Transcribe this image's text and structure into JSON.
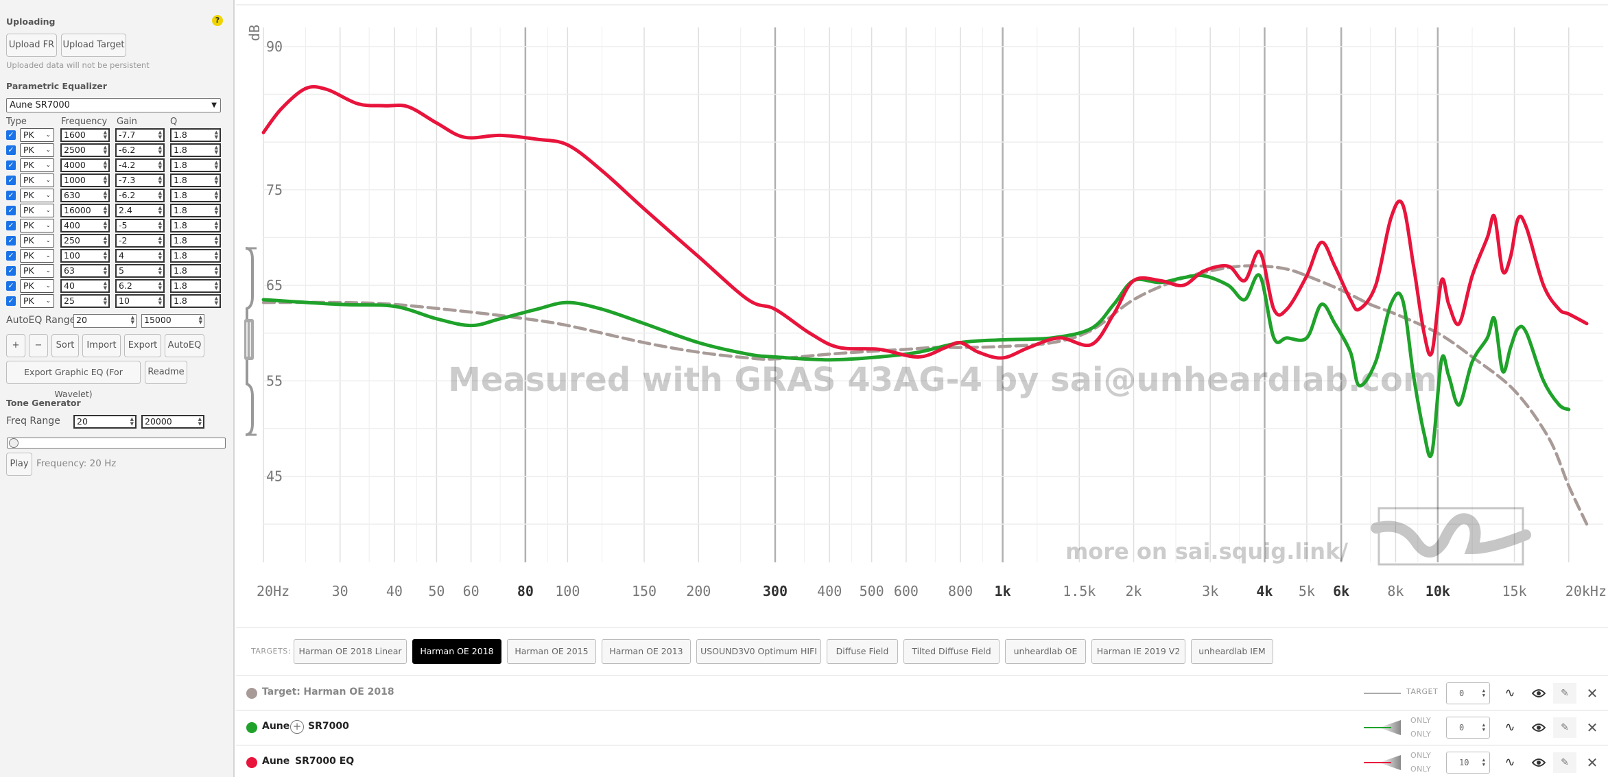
{
  "sidebar": {
    "uploading": {
      "title": "Uploading",
      "help": "?",
      "upload_fr": "Upload FR",
      "upload_target": "Upload Target",
      "note": "Uploaded data will not be persistent"
    },
    "peq": {
      "title": "Parametric Equalizer",
      "selected_phone": "Aune SR7000",
      "columns": {
        "type": "Type",
        "frequency": "Frequency",
        "gain": "Gain",
        "q": "Q"
      },
      "filters": [
        {
          "type": "PK",
          "freq": "1600",
          "gain": "-7.7",
          "q": "1.8"
        },
        {
          "type": "PK",
          "freq": "2500",
          "gain": "-6.2",
          "q": "1.8"
        },
        {
          "type": "PK",
          "freq": "4000",
          "gain": "-4.2",
          "q": "1.8"
        },
        {
          "type": "PK",
          "freq": "1000",
          "gain": "-7.3",
          "q": "1.8"
        },
        {
          "type": "PK",
          "freq": "630",
          "gain": "-6.2",
          "q": "1.8"
        },
        {
          "type": "PK",
          "freq": "16000",
          "gain": "2.4",
          "q": "1.8"
        },
        {
          "type": "PK",
          "freq": "400",
          "gain": "-5",
          "q": "1.8"
        },
        {
          "type": "PK",
          "freq": "250",
          "gain": "-2",
          "q": "1.8"
        },
        {
          "type": "PK",
          "freq": "100",
          "gain": "4",
          "q": "1.8"
        },
        {
          "type": "PK",
          "freq": "63",
          "gain": "5",
          "q": "1.8"
        },
        {
          "type": "PK",
          "freq": "40",
          "gain": "6.2",
          "q": "1.8"
        },
        {
          "type": "PK",
          "freq": "25",
          "gain": "10",
          "q": "1.8"
        }
      ],
      "autoeq_range_label": "AutoEQ Range",
      "autoeq_min": "20",
      "autoeq_max": "15000",
      "buttons": {
        "plus": "+",
        "minus": "−",
        "sort": "Sort",
        "import": "Import",
        "export": "Export",
        "autoeq": "AutoEQ"
      },
      "export_graphic": "Export Graphic EQ (For Wavelet)",
      "readme": "Readme"
    },
    "tone": {
      "title": "Tone Generator",
      "freq_range_label": "Freq Range",
      "min": "20",
      "max": "20000",
      "slider_fraction": 0,
      "play": "Play",
      "frequency_text": "Frequency: 20 Hz"
    }
  },
  "graph": {
    "y_unit": "dB",
    "watermark": "Measured with GRAS 43AG-4 by sai@unheardlab.com",
    "more": "more on sai.squig.link/",
    "y_ticks": [
      {
        "v": 90,
        "label": "90"
      },
      {
        "v": 75,
        "label": "75"
      },
      {
        "v": 65,
        "label": "65"
      },
      {
        "v": 55,
        "label": "55"
      },
      {
        "v": 45,
        "label": "45"
      }
    ],
    "x_ticks": [
      {
        "f": 20,
        "label": "20Hz",
        "major": false
      },
      {
        "f": 30,
        "label": "30",
        "major": false
      },
      {
        "f": 40,
        "label": "40",
        "major": false
      },
      {
        "f": 50,
        "label": "50",
        "major": false
      },
      {
        "f": 60,
        "label": "60",
        "major": false
      },
      {
        "f": 80,
        "label": "80",
        "major": true
      },
      {
        "f": 100,
        "label": "100",
        "major": false
      },
      {
        "f": 150,
        "label": "150",
        "major": false
      },
      {
        "f": 200,
        "label": "200",
        "major": false
      },
      {
        "f": 300,
        "label": "300",
        "major": true
      },
      {
        "f": 400,
        "label": "400",
        "major": false
      },
      {
        "f": 500,
        "label": "500",
        "major": false
      },
      {
        "f": 600,
        "label": "600",
        "major": false
      },
      {
        "f": 800,
        "label": "800",
        "major": false
      },
      {
        "f": 1000,
        "label": "1k",
        "major": true
      },
      {
        "f": 1500,
        "label": "1.5k",
        "major": false
      },
      {
        "f": 2000,
        "label": "2k",
        "major": false
      },
      {
        "f": 3000,
        "label": "3k",
        "major": false
      },
      {
        "f": 4000,
        "label": "4k",
        "major": true
      },
      {
        "f": 5000,
        "label": "5k",
        "major": false
      },
      {
        "f": 6000,
        "label": "6k",
        "major": true
      },
      {
        "f": 8000,
        "label": "8k",
        "major": false
      },
      {
        "f": 10000,
        "label": "10k",
        "major": true
      },
      {
        "f": 15000,
        "label": "15k",
        "major": false
      },
      {
        "f": 20000,
        "label": "20kHz",
        "major": false
      }
    ],
    "extra_grid": [
      25,
      35,
      45,
      70,
      90,
      120,
      250,
      350,
      450,
      700,
      900,
      1200,
      2500,
      3500,
      7000,
      9000,
      12000
    ],
    "colors": {
      "eq": "#e8143c",
      "raw": "#1fa22a",
      "target": "#a89b97"
    }
  },
  "chart_data": {
    "type": "line",
    "xscale": "log",
    "xlim": [
      20,
      24000
    ],
    "ylim": [
      36,
      92
    ],
    "ylabel": "dB",
    "series": [
      {
        "name": "Aune SR7000 EQ",
        "points": [
          [
            20,
            81
          ],
          [
            22,
            83.5
          ],
          [
            25,
            85.6
          ],
          [
            28,
            85.5
          ],
          [
            33,
            84
          ],
          [
            38,
            83.8
          ],
          [
            43,
            83.7
          ],
          [
            50,
            82
          ],
          [
            58,
            80.5
          ],
          [
            70,
            80.7
          ],
          [
            85,
            80.3
          ],
          [
            100,
            79.7
          ],
          [
            120,
            77
          ],
          [
            150,
            73
          ],
          [
            200,
            68
          ],
          [
            260,
            63.5
          ],
          [
            300,
            62.5
          ],
          [
            360,
            60
          ],
          [
            420,
            58.5
          ],
          [
            520,
            58.3
          ],
          [
            640,
            57.5
          ],
          [
            740,
            58.5
          ],
          [
            800,
            59
          ],
          [
            880,
            58
          ],
          [
            1000,
            57.4
          ],
          [
            1150,
            58.5
          ],
          [
            1350,
            59.5
          ],
          [
            1600,
            58.8
          ],
          [
            1800,
            62
          ],
          [
            2000,
            65.5
          ],
          [
            2300,
            65.5
          ],
          [
            2600,
            65
          ],
          [
            2900,
            66.5
          ],
          [
            3300,
            67
          ],
          [
            3600,
            65.5
          ],
          [
            3900,
            68.5
          ],
          [
            4200,
            62.5
          ],
          [
            4500,
            62.5
          ],
          [
            5000,
            66
          ],
          [
            5400,
            69.5
          ],
          [
            5800,
            67
          ],
          [
            6300,
            63.5
          ],
          [
            6600,
            62.5
          ],
          [
            7200,
            65
          ],
          [
            7800,
            72
          ],
          [
            8300,
            73.5
          ],
          [
            8800,
            67
          ],
          [
            9300,
            60
          ],
          [
            9700,
            58
          ],
          [
            10200,
            65.5
          ],
          [
            10600,
            63
          ],
          [
            11200,
            61
          ],
          [
            12000,
            66
          ],
          [
            13000,
            70
          ],
          [
            13500,
            72.2
          ],
          [
            14100,
            66.5
          ],
          [
            14700,
            68
          ],
          [
            15300,
            72
          ],
          [
            16000,
            71
          ],
          [
            17500,
            65
          ],
          [
            19000,
            62.5
          ],
          [
            20000,
            62
          ],
          [
            22000,
            61
          ]
        ]
      },
      {
        "name": "Aune SR7000",
        "points": [
          [
            20,
            63.5
          ],
          [
            30,
            63
          ],
          [
            40,
            62.8
          ],
          [
            50,
            61.5
          ],
          [
            60,
            60.8
          ],
          [
            70,
            61.5
          ],
          [
            85,
            62.5
          ],
          [
            100,
            63.2
          ],
          [
            120,
            62.5
          ],
          [
            150,
            61
          ],
          [
            200,
            59
          ],
          [
            260,
            57.8
          ],
          [
            300,
            57.5
          ],
          [
            400,
            57.2
          ],
          [
            520,
            57.5
          ],
          [
            640,
            58
          ],
          [
            800,
            59
          ],
          [
            1000,
            59.3
          ],
          [
            1300,
            59.5
          ],
          [
            1600,
            60.5
          ],
          [
            1800,
            63
          ],
          [
            2000,
            65.5
          ],
          [
            2300,
            65.3
          ],
          [
            2600,
            65.8
          ],
          [
            2900,
            66
          ],
          [
            3300,
            65
          ],
          [
            3600,
            63.5
          ],
          [
            3900,
            66
          ],
          [
            4200,
            59.5
          ],
          [
            4500,
            59.5
          ],
          [
            5000,
            59.5
          ],
          [
            5400,
            63
          ],
          [
            5800,
            61
          ],
          [
            6300,
            58
          ],
          [
            6600,
            54.5
          ],
          [
            7200,
            57
          ],
          [
            7800,
            63
          ],
          [
            8300,
            63.5
          ],
          [
            8800,
            55.5
          ],
          [
            9300,
            49.5
          ],
          [
            9700,
            47.5
          ],
          [
            10200,
            57.2
          ],
          [
            10600,
            55.5
          ],
          [
            11200,
            52.5
          ],
          [
            12000,
            57
          ],
          [
            13000,
            59.5
          ],
          [
            13500,
            61.5
          ],
          [
            14100,
            56
          ],
          [
            14700,
            58.5
          ],
          [
            15300,
            60.5
          ],
          [
            16000,
            60
          ],
          [
            17500,
            55
          ],
          [
            19000,
            52.5
          ],
          [
            20000,
            52
          ]
        ]
      },
      {
        "name": "Harman OE 2018",
        "dashed": true,
        "points": [
          [
            20,
            63.2
          ],
          [
            30,
            63.2
          ],
          [
            40,
            63
          ],
          [
            60,
            62.2
          ],
          [
            80,
            61.5
          ],
          [
            100,
            60.8
          ],
          [
            150,
            59
          ],
          [
            200,
            58
          ],
          [
            260,
            57.4
          ],
          [
            300,
            57.3
          ],
          [
            400,
            57.8
          ],
          [
            500,
            58.1
          ],
          [
            600,
            58.3
          ],
          [
            700,
            58.5
          ],
          [
            800,
            58.5
          ],
          [
            1000,
            58.6
          ],
          [
            1300,
            59
          ],
          [
            1600,
            60.3
          ],
          [
            2000,
            63.5
          ],
          [
            2500,
            65.5
          ],
          [
            3000,
            66.5
          ],
          [
            3500,
            67
          ],
          [
            4000,
            67
          ],
          [
            4500,
            66.7
          ],
          [
            5000,
            66
          ],
          [
            6000,
            64.5
          ],
          [
            7000,
            63
          ],
          [
            8000,
            62
          ],
          [
            10000,
            60
          ],
          [
            12000,
            57.5
          ],
          [
            15000,
            54
          ],
          [
            18000,
            49
          ],
          [
            20000,
            44
          ],
          [
            22000,
            40
          ]
        ]
      }
    ]
  },
  "targets": {
    "label": "TARGETS:",
    "items": [
      {
        "label": "Harman OE 2018 Linear",
        "active": false
      },
      {
        "label": "Harman OE 2018",
        "active": true
      },
      {
        "label": "Harman OE 2015",
        "active": false
      },
      {
        "label": "Harman OE 2013",
        "active": false
      },
      {
        "label": "USOUND3V0 Optimum HIFI",
        "active": false
      },
      {
        "label": "Diffuse Field",
        "active": false
      },
      {
        "label": "Tilted Diffuse Field",
        "active": false
      },
      {
        "label": "unheardlab OE",
        "active": false
      },
      {
        "label": "Harman IE 2019 V2",
        "active": false
      },
      {
        "label": "unheardlab IEM",
        "active": false
      }
    ]
  },
  "phones": [
    {
      "kind": "target",
      "prefix": "Target:",
      "brand": "",
      "model": "Harman OE 2018",
      "legend": "TARGET",
      "offset": "0",
      "color": "#a89b97"
    },
    {
      "kind": "phone",
      "prefix": "",
      "brand": "Aune",
      "model": "SR7000",
      "only1": "ONLY",
      "only2": "ONLY",
      "offset": "0",
      "color": "#1fa22a"
    },
    {
      "kind": "phone",
      "prefix": "",
      "brand": "Aune",
      "model": "SR7000 EQ",
      "only1": "ONLY",
      "only2": "ONLY",
      "offset": "10",
      "color": "#e8143c"
    }
  ]
}
